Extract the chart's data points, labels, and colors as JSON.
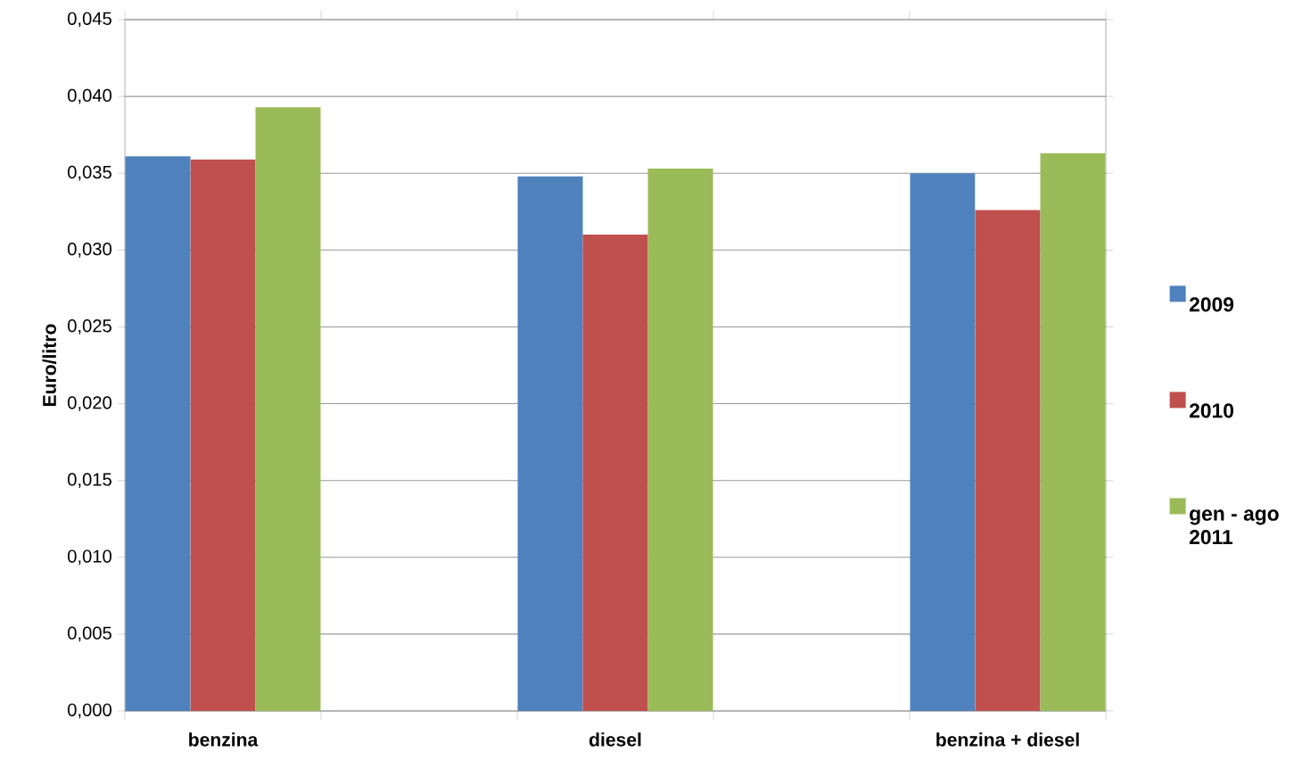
{
  "chart_data": {
    "type": "bar",
    "ylabel": "Euro/litro",
    "categories": [
      "benzina",
      "diesel",
      "benzina + diesel"
    ],
    "series": [
      {
        "name": "2009",
        "color": "#4f81bd",
        "values": [
          0.0361,
          0.0348,
          0.035
        ]
      },
      {
        "name": "2010",
        "color": "#c0504d",
        "values": [
          0.0359,
          0.031,
          0.0326
        ]
      },
      {
        "name": "gen - ago 2011",
        "color": "#9bbb59",
        "values": [
          0.0393,
          0.0353,
          0.0363
        ]
      }
    ],
    "ylim": [
      0,
      0.045
    ],
    "yticks": [
      {
        "value": 0,
        "label": "0,000"
      },
      {
        "value": 0.005,
        "label": "0,005"
      },
      {
        "value": 0.01,
        "label": "0,010"
      },
      {
        "value": 0.015,
        "label": "0,015"
      },
      {
        "value": 0.02,
        "label": "0,020"
      },
      {
        "value": 0.025,
        "label": "0,025"
      },
      {
        "value": 0.03,
        "label": "0,030"
      },
      {
        "value": 0.035,
        "label": "0,035"
      },
      {
        "value": 0.04,
        "label": "0,040"
      },
      {
        "value": 0.045,
        "label": "0,045"
      }
    ],
    "grid": "y",
    "legend": "right"
  }
}
